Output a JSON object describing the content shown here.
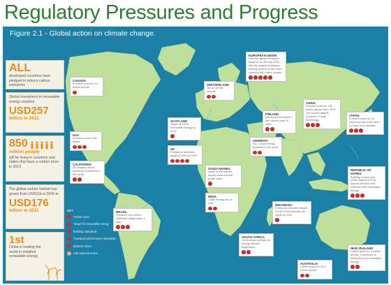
{
  "slide": {
    "title": "Regulatory Pressures and Progress"
  },
  "figure": {
    "caption": "Figure 2.1 - Global action on climate change."
  },
  "stats": [
    {
      "big": "ALL",
      "text": "developed countries have pledged to reduce carbon emissions"
    },
    {
      "pre": "Global investment in renewable energy reached",
      "big": "USD257",
      "sub": "billion in 2011"
    },
    {
      "big": "850",
      "sub": "million people",
      "text": "will be living in countries and states that have a carbon price in 2013"
    },
    {
      "pre": "The global carbon market has grown from USD11b in 2005 to",
      "big": "USD176",
      "sub": "billion in 2011"
    },
    {
      "big": "1st",
      "text": "China is leading the world in installed renewable energy"
    }
  ],
  "callouts": {
    "canada": {
      "title": "Canada",
      "desc": "A carbon price for 10 million people"
    },
    "usa": {
      "title": "USA",
      "desc": "A carbon price in ten states"
    },
    "california": {
      "title": "California",
      "desc": "2nd largest carbon market by emissions in the world"
    },
    "brazil": {
      "title": "Brazil",
      "desc": "Replaces one million inefficient refrigerators a year"
    },
    "scotland": {
      "title": "Scotland",
      "desc": "Target of 100% renewable energy by 2020"
    },
    "uk": {
      "title": "UK",
      "desc": "Emissions reduction target of 50% by 2025"
    },
    "switzerland": {
      "title": "Switzerland",
      "desc": "Tax on all fuel imports"
    },
    "eu": {
      "title": "European Union",
      "desc": "Has the highest reduction target of 20-30% by 2020. Has the largest emissions trading scheme in the world covering 500 million people"
    },
    "finland": {
      "title": "Finland",
      "desc": "Introduced the world's first carbon price in 1990"
    },
    "germany": {
      "title": "Germany",
      "desc": "No. 1 solar energy producer in the world"
    },
    "china": {
      "title": "China",
      "desc": "A carbon price for 250 million people from 2013. The world's largest producer of solar technology"
    },
    "japan": {
      "title": "Japan",
      "desc": "A carbon price for 20 million people in the cities of Tokyo and Saitama"
    },
    "saudi": {
      "title": "Saudi Arabia",
      "desc": "Home to the world's largest solar thermal power plant"
    },
    "india": {
      "title": "India",
      "desc": "Clean energy tax on coal"
    },
    "korea": {
      "title": "Republic of Korea",
      "desc": "Building a smart grid power system to help regions become self-sufficient with renewable energy"
    },
    "indonesia": {
      "title": "Indonesia",
      "desc": "Emissions reduction target of 26% from business as usual by 2020"
    },
    "southafrica": {
      "title": "South Africa",
      "desc": "Government subsidy for energy efficient businesses"
    },
    "australia": {
      "title": "Australia",
      "desc": "Carbon price for 22.3 million people"
    },
    "newzealand": {
      "title": "New Zealand",
      "desc": "Carbon price for 4 million people. Two-thirds of electricity from renewable energy"
    }
  },
  "key": {
    "heading": "KEY",
    "items": [
      "Carbon price",
      "Target for renewable energy",
      "Building standards",
      "Transport performance standards",
      "Biofuels action",
      "Sub-national action"
    ]
  },
  "colors": {
    "title": "#2e7d32",
    "ocean": "#1b7fa6",
    "land": "#bfe09a",
    "accent": "#e88a1a",
    "icon": "#c8302c"
  }
}
